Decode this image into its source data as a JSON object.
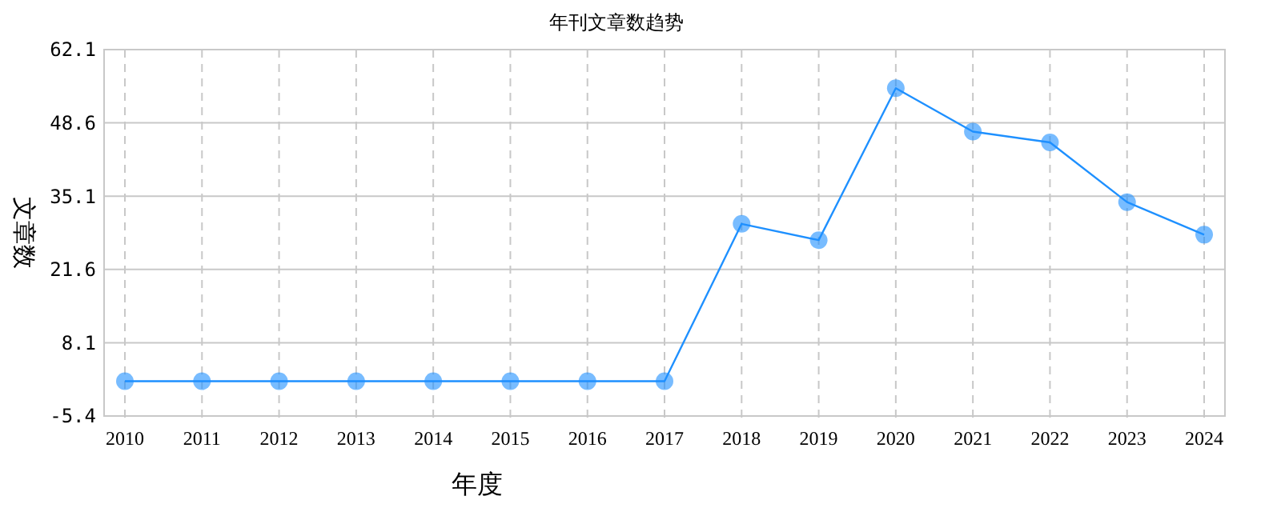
{
  "chart_data": {
    "type": "line",
    "title": "年刊文章数趋势",
    "xlabel": "年度",
    "ylabel": "文章数",
    "categories": [
      "2010",
      "2011",
      "2012",
      "2013",
      "2014",
      "2015",
      "2016",
      "2017",
      "2018",
      "2019",
      "2020",
      "2021",
      "2022",
      "2023",
      "2024"
    ],
    "series": [
      {
        "color": "#1e90ff",
        "values": [
          1,
          1,
          1,
          1,
          1,
          1,
          1,
          1,
          30,
          27,
          55,
          47,
          45,
          34,
          28
        ]
      }
    ],
    "ylim": [
      -5.4,
      62.1
    ],
    "yticks": [
      -5.4,
      8.1,
      21.6,
      35.1,
      48.6,
      62.1
    ],
    "grid": true,
    "marker": "circle",
    "line_style": "solid"
  }
}
